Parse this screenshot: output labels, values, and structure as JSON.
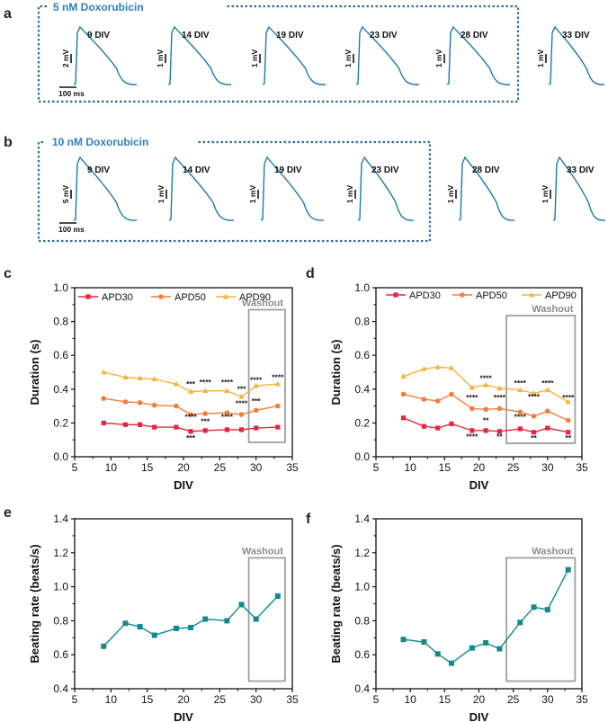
{
  "panel_letters": {
    "a": "a",
    "b": "b",
    "c": "c",
    "d": "d",
    "e": "e",
    "f": "f"
  },
  "traces_a": {
    "condition": "5 nM Doxorubicin",
    "labels": [
      "9 DIV",
      "14 DIV",
      "19 DIV",
      "23 DIV",
      "28 DIV",
      "33 DIV"
    ],
    "scales": [
      "2 mV",
      "1 mV",
      "1 mV",
      "1 mV",
      "1 mV",
      "1 mV"
    ],
    "time_scale": "100 ms"
  },
  "traces_b": {
    "condition": "10 nM Doxorubicin",
    "labels": [
      "9 DIV",
      "14 DIV",
      "19 DIV",
      "23 DIV",
      "28 DIV",
      "33 DIV"
    ],
    "scales": [
      "5 mV",
      "1 mV",
      "1 mV",
      "1 mV",
      "1 mV",
      "1 mV"
    ],
    "time_scale": "100 ms"
  },
  "colors": {
    "trace": "#1f78a8",
    "apd30": "#e8253f",
    "apd50": "#f47d3e",
    "apd90": "#f5b23c",
    "rate": "#148a8a",
    "washout_box": "#a0a0a0",
    "dotted_box": "#2f6fa6"
  },
  "washout_label": "Washout",
  "chart_data": [
    {
      "panel": "c",
      "type": "line",
      "xlabel": "DIV",
      "ylabel": "Duration (s)",
      "xlim": [
        5,
        35
      ],
      "ylim": [
        0.0,
        1.0
      ],
      "xticks": [
        "5",
        "10",
        "15",
        "20",
        "25",
        "30",
        "35"
      ],
      "yticks": [
        "0.0",
        "0.2",
        "0.4",
        "0.6",
        "0.8",
        "1.0"
      ],
      "x": [
        9,
        12,
        14,
        16,
        19,
        21,
        23,
        26,
        28,
        30,
        33
      ],
      "series": [
        {
          "name": "APD30",
          "values": [
            0.2,
            0.19,
            0.19,
            0.175,
            0.175,
            0.15,
            0.155,
            0.16,
            0.16,
            0.17,
            0.175
          ]
        },
        {
          "name": "APD50",
          "values": [
            0.345,
            0.325,
            0.32,
            0.305,
            0.3,
            0.25,
            0.255,
            0.26,
            0.25,
            0.275,
            0.3
          ]
        },
        {
          "name": "APD90",
          "values": [
            0.5,
            0.47,
            0.465,
            0.46,
            0.43,
            0.385,
            0.39,
            0.39,
            0.355,
            0.42,
            0.43
          ]
        }
      ],
      "washout_range": [
        29,
        34
      ],
      "annotations": [
        {
          "x": 21,
          "y": 0.415,
          "text": "***"
        },
        {
          "x": 23,
          "y": 0.425,
          "text": "****"
        },
        {
          "x": 26,
          "y": 0.425,
          "text": "****"
        },
        {
          "x": 28,
          "y": 0.385,
          "text": "***"
        },
        {
          "x": 30,
          "y": 0.44,
          "text": "****"
        },
        {
          "x": 33,
          "y": 0.455,
          "text": "****"
        },
        {
          "x": 21,
          "y": 0.22,
          "text": "****"
        },
        {
          "x": 23,
          "y": 0.195,
          "text": "***"
        },
        {
          "x": 26,
          "y": 0.22,
          "text": "****"
        },
        {
          "x": 28,
          "y": 0.3,
          "text": "****"
        },
        {
          "x": 30,
          "y": 0.315,
          "text": "***"
        },
        {
          "x": 21,
          "y": 0.095,
          "text": "***"
        }
      ]
    },
    {
      "panel": "d",
      "type": "line",
      "xlabel": "DIV",
      "ylabel": "Duration (s)",
      "xlim": [
        5,
        35
      ],
      "ylim": [
        0.0,
        1.0
      ],
      "xticks": [
        "5",
        "10",
        "15",
        "20",
        "25",
        "30",
        "35"
      ],
      "yticks": [
        "0.0",
        "0.2",
        "0.4",
        "0.6",
        "0.8",
        "1.0"
      ],
      "x": [
        9,
        12,
        14,
        16,
        19,
        21,
        23,
        26,
        28,
        30,
        33
      ],
      "series": [
        {
          "name": "APD30",
          "values": [
            0.23,
            0.18,
            0.17,
            0.195,
            0.155,
            0.155,
            0.15,
            0.165,
            0.145,
            0.17,
            0.145
          ]
        },
        {
          "name": "APD50",
          "values": [
            0.37,
            0.34,
            0.33,
            0.37,
            0.285,
            0.28,
            0.285,
            0.265,
            0.24,
            0.27,
            0.215
          ]
        },
        {
          "name": "APD90",
          "values": [
            0.475,
            0.52,
            0.53,
            0.525,
            0.41,
            0.425,
            0.405,
            0.395,
            0.375,
            0.395,
            0.325
          ]
        }
      ],
      "washout_range": [
        24,
        34
      ],
      "annotations": [
        {
          "x": 21,
          "y": 0.45,
          "text": "****"
        },
        {
          "x": 26,
          "y": 0.42,
          "text": "****"
        },
        {
          "x": 30,
          "y": 0.42,
          "text": "****"
        },
        {
          "x": 19,
          "y": 0.335,
          "text": "****"
        },
        {
          "x": 23,
          "y": 0.335,
          "text": "****"
        },
        {
          "x": 28,
          "y": 0.34,
          "text": "****"
        },
        {
          "x": 33,
          "y": 0.335,
          "text": "****"
        },
        {
          "x": 21,
          "y": 0.2,
          "text": "**"
        },
        {
          "x": 26,
          "y": 0.22,
          "text": "****"
        },
        {
          "x": 19,
          "y": 0.105,
          "text": "****"
        },
        {
          "x": 23,
          "y": 0.105,
          "text": "**"
        },
        {
          "x": 28,
          "y": 0.095,
          "text": "**"
        },
        {
          "x": 33,
          "y": 0.095,
          "text": "**"
        }
      ]
    },
    {
      "panel": "e",
      "type": "line",
      "xlabel": "DIV",
      "ylabel": "Beating rate (beats/s)",
      "xlim": [
        5,
        35
      ],
      "ylim": [
        0.4,
        1.4
      ],
      "xticks": [
        "5",
        "10",
        "15",
        "20",
        "25",
        "30",
        "35"
      ],
      "yticks": [
        "0.4",
        "0.6",
        "0.8",
        "1.0",
        "1.2",
        "1.4"
      ],
      "x": [
        9,
        12,
        14,
        16,
        19,
        21,
        23,
        26,
        28,
        30,
        33
      ],
      "series": [
        {
          "name": "Beating rate",
          "values": [
            0.65,
            0.785,
            0.765,
            0.715,
            0.755,
            0.76,
            0.81,
            0.8,
            0.895,
            0.81,
            0.945
          ]
        }
      ],
      "washout_range": [
        29,
        34
      ]
    },
    {
      "panel": "f",
      "type": "line",
      "xlabel": "DIV",
      "ylabel": "Beating rate (beats/s)",
      "xlim": [
        5,
        35
      ],
      "ylim": [
        0.4,
        1.4
      ],
      "xticks": [
        "5",
        "10",
        "15",
        "20",
        "25",
        "30",
        "35"
      ],
      "yticks": [
        "0.4",
        "0.6",
        "0.8",
        "1.0",
        "1.2",
        "1.4"
      ],
      "x": [
        9,
        12,
        14,
        16,
        19,
        21,
        23,
        26,
        28,
        30,
        33
      ],
      "series": [
        {
          "name": "Beating rate",
          "values": [
            0.69,
            0.675,
            0.605,
            0.55,
            0.64,
            0.67,
            0.635,
            0.79,
            0.88,
            0.865,
            1.1
          ]
        }
      ],
      "washout_range": [
        24,
        34
      ]
    }
  ]
}
